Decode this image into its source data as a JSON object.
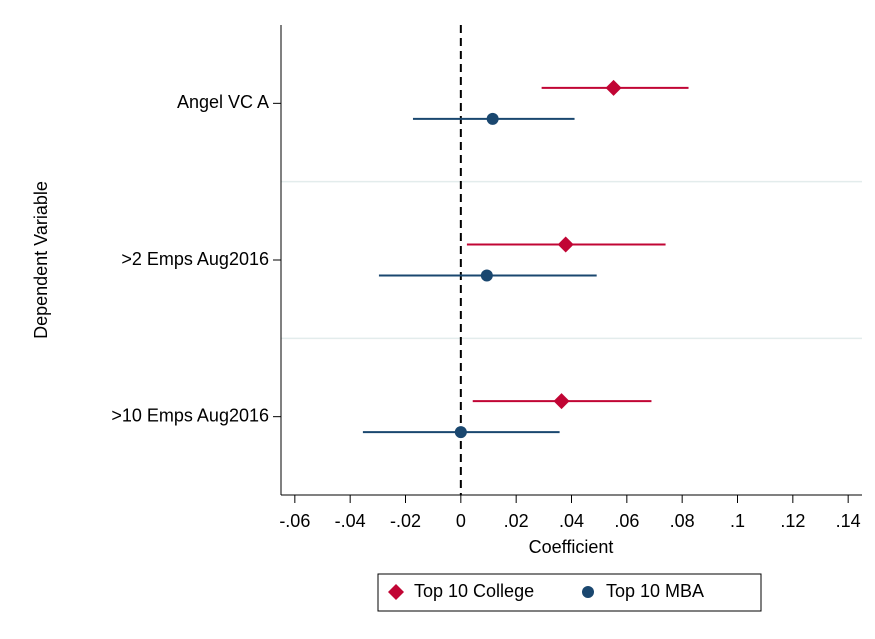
{
  "chart_data": {
    "type": "coefplot",
    "orientation": "horizontal",
    "ylabel": "Dependent Variable",
    "xlabel": "Coefficient",
    "categories": [
      "Angel VC A",
      ">2 Emps Aug2016",
      ">10 Emps Aug2016"
    ],
    "series": [
      {
        "name": "Top 10 College",
        "color": "#c10534",
        "marker": "diamond",
        "values": [
          0.0552,
          0.0379,
          0.0364
        ],
        "ci_low": [
          0.0292,
          0.0022,
          0.0043
        ],
        "ci_high": [
          0.0823,
          0.074,
          0.0689
        ]
      },
      {
        "name": "Top 10 MBA",
        "color": "#1a476f",
        "marker": "circle",
        "values": [
          0.0115,
          0.0094,
          0.0
        ],
        "ci_low": [
          -0.0173,
          -0.0296,
          -0.0354
        ],
        "ci_high": [
          0.0411,
          0.0491,
          0.0357
        ]
      }
    ],
    "xlim": [
      -0.065,
      0.145
    ],
    "xticks": [
      {
        "value": -0.06,
        "label": "-.06"
      },
      {
        "value": -0.04,
        "label": "-.04"
      },
      {
        "value": -0.02,
        "label": "-.02"
      },
      0,
      {
        "value": 0.02,
        "label": ".02"
      },
      {
        "value": 0.04,
        "label": ".04"
      },
      {
        "value": 0.06,
        "label": ".06"
      },
      {
        "value": 0.08,
        "label": ".08"
      },
      {
        "value": 0.1,
        "label": ".1"
      },
      {
        "value": 0.12,
        "label": ".12"
      },
      {
        "value": 0.14,
        "label": ".14"
      }
    ],
    "xline": 0,
    "legend": "bottom"
  }
}
